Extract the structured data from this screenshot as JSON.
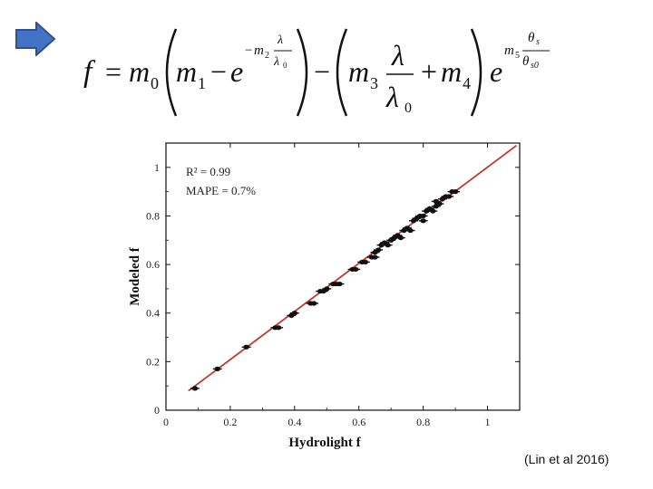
{
  "slide": {
    "citation": "(Lin et al 2016)",
    "arrow_icon": "right-arrow-icon",
    "accent_color": "#4472C4"
  },
  "formula": {
    "lhs": "f",
    "equals": "=",
    "m0": "m",
    "m0_sub": "0",
    "m1": "m",
    "m1_sub": "1",
    "minus": "−",
    "e": "e",
    "exp1_minus": "−",
    "exp1_m": "m",
    "exp1_m_sub": "2",
    "lambda": "λ",
    "lambda0": "λ",
    "lambda0_sub": "0",
    "m3": "m",
    "m3_sub": "3",
    "plus": "+",
    "m4": "m",
    "m4_sub": "4",
    "exp2_m": "m",
    "exp2_m_sub": "5",
    "theta_s": "θ",
    "theta_s_sub": "s",
    "theta_s0": "θ",
    "theta_s0_sub": "s0"
  },
  "chart_data": {
    "type": "scatter",
    "xlabel": "Hydrolight f",
    "ylabel": "Modeled f",
    "xlim": [
      0,
      1.1
    ],
    "ylim": [
      0,
      1.1
    ],
    "xticks": [
      0,
      0.2,
      0.4,
      0.6,
      0.8,
      1
    ],
    "yticks": [
      0,
      0.2,
      0.4,
      0.6,
      0.8,
      1
    ],
    "tick_labels": [
      "0",
      "0.2",
      "0.4",
      "0.6",
      "0.8",
      "1"
    ],
    "annotations": [
      "R² = 0.99",
      "MAPE = 0.7%"
    ],
    "fit_line": {
      "x": [
        0.07,
        1.09
      ],
      "y": [
        0.08,
        1.09
      ],
      "color": "#c0392b"
    },
    "marker_color": "#111111",
    "points": [
      {
        "x": 0.09,
        "y": 0.09
      },
      {
        "x": 0.16,
        "y": 0.17
      },
      {
        "x": 0.25,
        "y": 0.26
      },
      {
        "x": 0.34,
        "y": 0.34
      },
      {
        "x": 0.35,
        "y": 0.34
      },
      {
        "x": 0.39,
        "y": 0.39
      },
      {
        "x": 0.4,
        "y": 0.4
      },
      {
        "x": 0.45,
        "y": 0.44
      },
      {
        "x": 0.46,
        "y": 0.44
      },
      {
        "x": 0.48,
        "y": 0.49
      },
      {
        "x": 0.49,
        "y": 0.49
      },
      {
        "x": 0.5,
        "y": 0.5
      },
      {
        "x": 0.52,
        "y": 0.52
      },
      {
        "x": 0.53,
        "y": 0.52
      },
      {
        "x": 0.54,
        "y": 0.52
      },
      {
        "x": 0.58,
        "y": 0.58
      },
      {
        "x": 0.59,
        "y": 0.58
      },
      {
        "x": 0.61,
        "y": 0.61
      },
      {
        "x": 0.62,
        "y": 0.61
      },
      {
        "x": 0.64,
        "y": 0.63
      },
      {
        "x": 0.65,
        "y": 0.63
      },
      {
        "x": 0.65,
        "y": 0.65
      },
      {
        "x": 0.66,
        "y": 0.66
      },
      {
        "x": 0.67,
        "y": 0.68
      },
      {
        "x": 0.68,
        "y": 0.69
      },
      {
        "x": 0.69,
        "y": 0.68
      },
      {
        "x": 0.7,
        "y": 0.7
      },
      {
        "x": 0.71,
        "y": 0.71
      },
      {
        "x": 0.72,
        "y": 0.72
      },
      {
        "x": 0.73,
        "y": 0.71
      },
      {
        "x": 0.74,
        "y": 0.74
      },
      {
        "x": 0.75,
        "y": 0.75
      },
      {
        "x": 0.76,
        "y": 0.74
      },
      {
        "x": 0.77,
        "y": 0.78
      },
      {
        "x": 0.78,
        "y": 0.79
      },
      {
        "x": 0.79,
        "y": 0.8
      },
      {
        "x": 0.8,
        "y": 0.8
      },
      {
        "x": 0.8,
        "y": 0.78
      },
      {
        "x": 0.81,
        "y": 0.82
      },
      {
        "x": 0.82,
        "y": 0.83
      },
      {
        "x": 0.83,
        "y": 0.82
      },
      {
        "x": 0.84,
        "y": 0.84
      },
      {
        "x": 0.84,
        "y": 0.86
      },
      {
        "x": 0.85,
        "y": 0.85
      },
      {
        "x": 0.86,
        "y": 0.87
      },
      {
        "x": 0.87,
        "y": 0.88
      },
      {
        "x": 0.88,
        "y": 0.88
      },
      {
        "x": 0.89,
        "y": 0.9
      },
      {
        "x": 0.9,
        "y": 0.9
      }
    ]
  }
}
